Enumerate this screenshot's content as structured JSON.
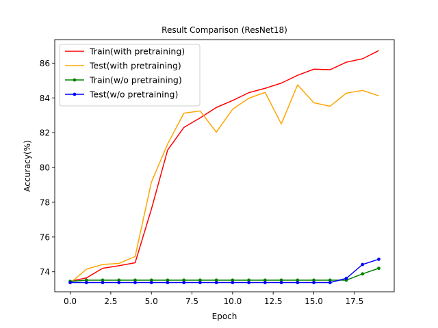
{
  "chart_data": {
    "type": "line",
    "title": "Result Comparison (ResNet18)",
    "xlabel": "Epoch",
    "ylabel": "Accuracy(%)",
    "xlim": [
      -0.95,
      19.95
    ],
    "ylim": [
      72.85,
      87.35
    ],
    "xticks": [
      0.0,
      2.5,
      5.0,
      7.5,
      10.0,
      12.5,
      15.0,
      17.5
    ],
    "xtick_labels": [
      "0.0",
      "2.5",
      "5.0",
      "7.5",
      "10.0",
      "12.5",
      "15.0",
      "17.5"
    ],
    "yticks": [
      74,
      76,
      78,
      80,
      82,
      84,
      86
    ],
    "ytick_labels": [
      "74",
      "76",
      "78",
      "80",
      "82",
      "84",
      "86"
    ],
    "grid": false,
    "legend": "top-left",
    "x": [
      0,
      1,
      2,
      3,
      4,
      5,
      6,
      7,
      8,
      9,
      10,
      11,
      12,
      13,
      14,
      15,
      16,
      17,
      18,
      19
    ],
    "series": [
      {
        "name": "Train(with pretraining)",
        "color": "#ff0000",
        "marker": false,
        "values": [
          73.45,
          73.65,
          74.2,
          74.35,
          74.52,
          77.6,
          81.0,
          82.3,
          82.85,
          83.45,
          83.85,
          84.3,
          84.55,
          84.85,
          85.3,
          85.65,
          85.62,
          86.05,
          86.25,
          86.72
        ]
      },
      {
        "name": "Test(with pretraining)",
        "color": "#ffa500",
        "marker": false,
        "values": [
          73.35,
          74.15,
          74.42,
          74.48,
          74.88,
          79.15,
          81.35,
          83.12,
          83.25,
          82.03,
          83.35,
          83.98,
          84.32,
          82.5,
          84.75,
          83.72,
          83.52,
          84.27,
          84.43,
          84.12
        ]
      },
      {
        "name": "Train(w/o pretraining)",
        "color": "#008000",
        "marker": true,
        "values": [
          73.45,
          73.52,
          73.52,
          73.52,
          73.52,
          73.52,
          73.52,
          73.52,
          73.52,
          73.52,
          73.52,
          73.52,
          73.52,
          73.52,
          73.52,
          73.52,
          73.52,
          73.52,
          73.88,
          74.2
        ]
      },
      {
        "name": "Test(w/o pretraining)",
        "color": "#0000ff",
        "marker": true,
        "values": [
          73.38,
          73.38,
          73.38,
          73.38,
          73.38,
          73.38,
          73.38,
          73.38,
          73.38,
          73.38,
          73.38,
          73.38,
          73.38,
          73.38,
          73.38,
          73.38,
          73.38,
          73.62,
          74.42,
          74.72
        ]
      }
    ]
  }
}
